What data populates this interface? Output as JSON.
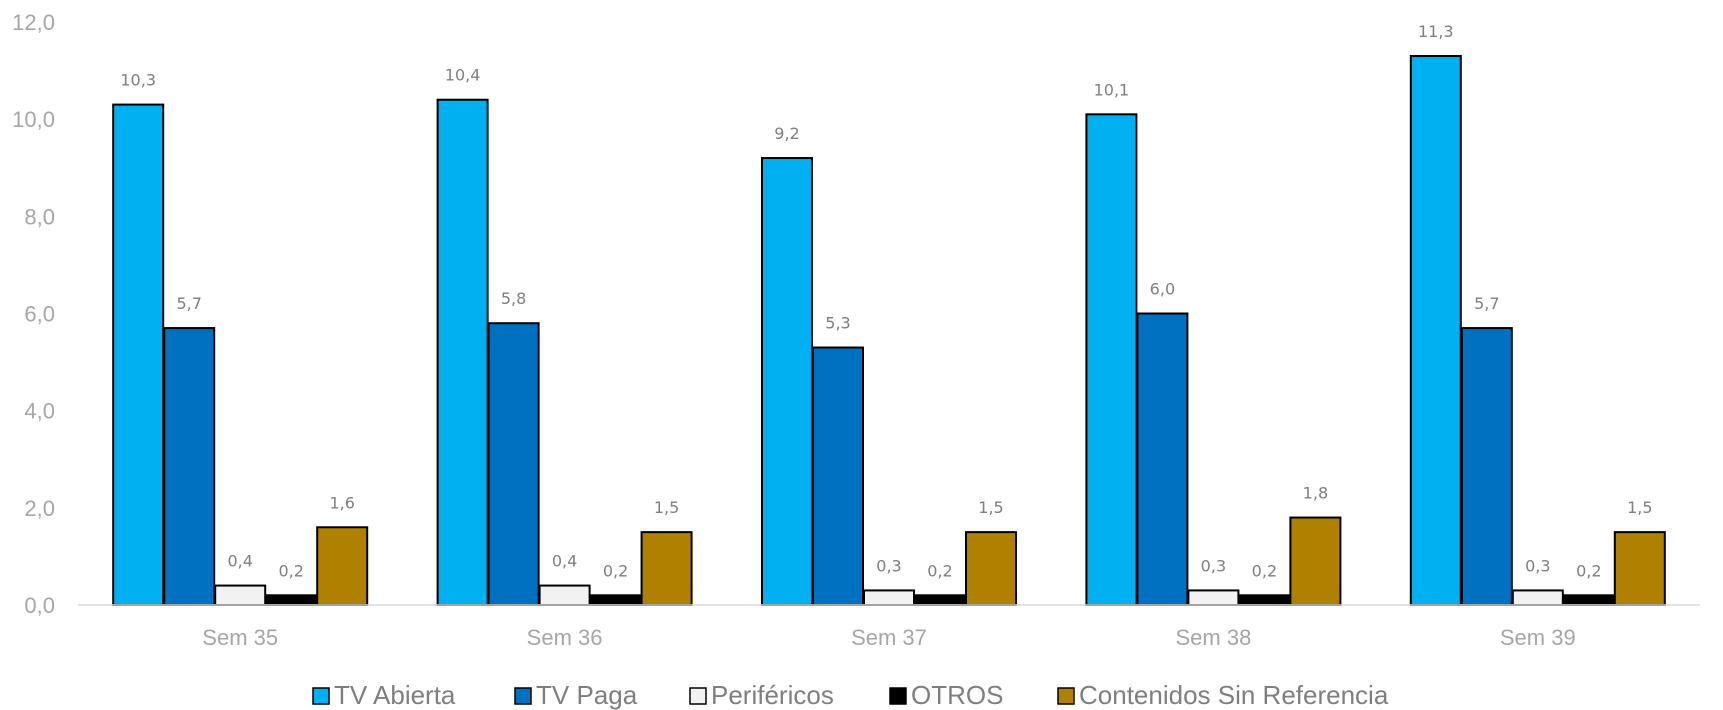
{
  "chart_data": {
    "type": "bar",
    "categories": [
      "Sem 35",
      "Sem 36",
      "Sem 37",
      "Sem 38",
      "Sem 39"
    ],
    "series": [
      {
        "name": "TV Abierta",
        "color": "#00b0f0",
        "values": [
          10.3,
          10.4,
          9.2,
          10.1,
          11.3
        ],
        "labels": [
          "10,3",
          "10,4",
          "9,2",
          "10,1",
          "11,3"
        ]
      },
      {
        "name": "TV Paga",
        "color": "#0070c0",
        "values": [
          5.7,
          5.8,
          5.3,
          6.0,
          5.7
        ],
        "labels": [
          "5,7",
          "5,8",
          "5,3",
          "6,0",
          "5,7"
        ]
      },
      {
        "name": "Periféricos",
        "color": "#f2f2f2",
        "values": [
          0.4,
          0.4,
          0.3,
          0.3,
          0.3
        ],
        "labels": [
          "0,4",
          "0,4",
          "0,3",
          "0,3",
          "0,3"
        ]
      },
      {
        "name": "OTROS",
        "color": "#000000",
        "values": [
          0.2,
          0.2,
          0.2,
          0.2,
          0.2
        ],
        "labels": [
          "0,2",
          "0,2",
          "0,2",
          "0,2",
          "0,2"
        ]
      },
      {
        "name": "Contenidos Sin Referencia",
        "color": "#b08000",
        "values": [
          1.6,
          1.5,
          1.5,
          1.8,
          1.5
        ],
        "labels": [
          "1,6",
          "1,5",
          "1,5",
          "1,8",
          "1,5"
        ]
      }
    ],
    "ylim": [
      0,
      12
    ],
    "yticks": [
      "0,0",
      "2,0",
      "4,0",
      "6,0",
      "8,0",
      "10,0",
      "12,0"
    ],
    "grid": false,
    "legend_position": "bottom",
    "title": "",
    "xlabel": "",
    "ylabel": ""
  }
}
